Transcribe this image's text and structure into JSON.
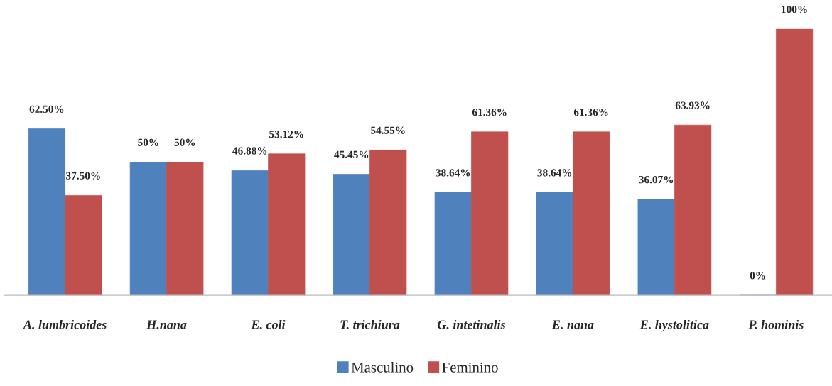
{
  "chart_data": {
    "type": "bar",
    "categories": [
      "A. lumbricoides",
      "H.nana",
      "E. coli",
      "T. trichiura",
      "G. intetinalis",
      "E. nana",
      "E. hystolitica",
      "P. hominis"
    ],
    "series": [
      {
        "name": "Masculino",
        "color": "#4f81bd",
        "values": [
          62.5,
          50,
          46.88,
          45.45,
          38.64,
          38.64,
          36.07,
          0
        ],
        "value_labels": [
          "62.50%",
          "50%",
          "46.88%",
          "45.45%",
          "38.64%",
          "38.64%",
          "36.07%",
          "0%"
        ]
      },
      {
        "name": "Feminino",
        "color": "#c0504d",
        "values": [
          37.5,
          50,
          53.12,
          54.55,
          61.36,
          61.36,
          63.93,
          100
        ],
        "value_labels": [
          "37.50%",
          "50%",
          "53.12%",
          "54.55%",
          "61.36%",
          "61.36%",
          "63.93%",
          "100%"
        ]
      }
    ],
    "legend": "bottom",
    "grid": false
  }
}
